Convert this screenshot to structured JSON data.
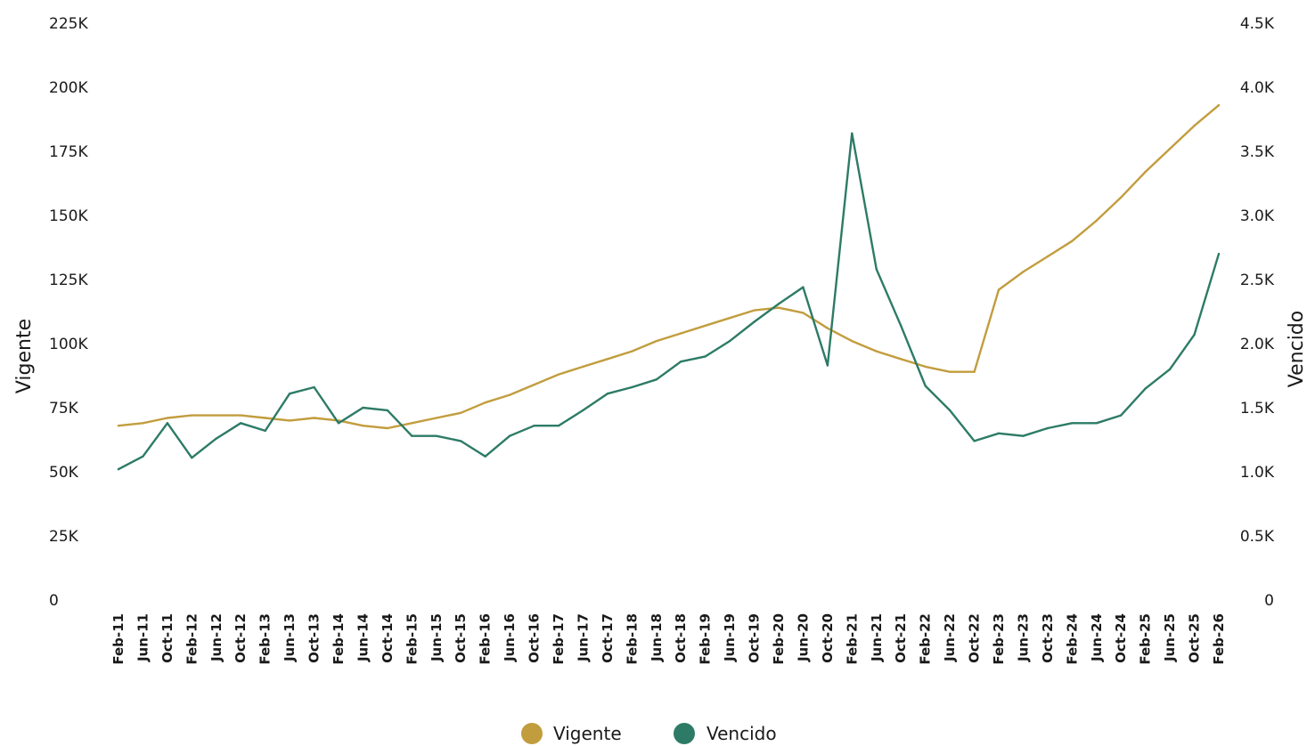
{
  "chart_data": {
    "type": "line",
    "title": "",
    "left_axis": {
      "label": "Vigente",
      "ylim": [
        0,
        225000
      ],
      "ticks": [
        0,
        25000,
        50000,
        75000,
        100000,
        125000,
        150000,
        175000,
        200000,
        225000
      ],
      "tick_labels": [
        "0",
        "25K",
        "50K",
        "75K",
        "100K",
        "125K",
        "150K",
        "175K",
        "200K",
        "225K"
      ]
    },
    "right_axis": {
      "label": "Vencido",
      "ylim": [
        0,
        4500
      ],
      "ticks": [
        0,
        500,
        1000,
        1500,
        2000,
        2500,
        3000,
        3500,
        4000,
        4500
      ],
      "tick_labels": [
        "0",
        "0.5K",
        "1.0K",
        "1.5K",
        "2.0K",
        "2.5K",
        "3.0K",
        "3.5K",
        "4.0K",
        "4.5K"
      ]
    },
    "x_ticks": [
      "Feb-11",
      "Jun-11",
      "Oct-11",
      "Feb-12",
      "Jun-12",
      "Oct-12",
      "Feb-13",
      "Jun-13",
      "Oct-13",
      "Feb-14",
      "Jun-14",
      "Oct-14",
      "Feb-15",
      "Jun-15",
      "Oct-15",
      "Feb-16",
      "Jun-16",
      "Oct-16",
      "Feb-17",
      "Jun-17",
      "Oct-17",
      "Feb-18",
      "Jun-18",
      "Oct-18",
      "Feb-19",
      "Jun-19",
      "Oct-19",
      "Feb-20",
      "Jun-20",
      "Oct-20",
      "Feb-21",
      "Jun-21",
      "Oct-21",
      "Feb-22",
      "Jun-22",
      "Oct-22",
      "Feb-23",
      "Jun-23",
      "Oct-23",
      "Feb-24",
      "Jun-24",
      "Oct-24",
      "Feb-25",
      "Jun-25",
      "Oct-25",
      "Feb-26"
    ],
    "grid": false,
    "legend_position": "bottom-center",
    "series": [
      {
        "name": "Vigente",
        "axis": "left",
        "color": "#c29d3e",
        "values": [
          68000,
          69000,
          71000,
          72000,
          72000,
          72000,
          71000,
          70000,
          71000,
          70000,
          68000,
          67000,
          69000,
          71000,
          73000,
          77000,
          80000,
          84000,
          88000,
          91000,
          94000,
          97000,
          101000,
          104000,
          107000,
          110000,
          113000,
          114000,
          112000,
          106000,
          101000,
          97000,
          94000,
          91000,
          89000,
          89000,
          121000,
          128000,
          134000,
          140000,
          148000,
          157000,
          167000,
          176000,
          185000,
          193000
        ]
      },
      {
        "name": "Vencido",
        "axis": "right",
        "color": "#2d7b66",
        "values": [
          1020,
          1120,
          1380,
          1110,
          1260,
          1380,
          1320,
          1610,
          1660,
          1380,
          1500,
          1480,
          1280,
          1280,
          1240,
          1120,
          1280,
          1360,
          1360,
          1480,
          1610,
          1660,
          1720,
          1860,
          1900,
          2020,
          2170,
          2310,
          2440,
          1830,
          3640,
          2580,
          2140,
          1670,
          1480,
          1240,
          1300,
          1280,
          1340,
          1380,
          1380,
          1440,
          1650,
          1800,
          2070,
          2700
        ]
      }
    ]
  }
}
